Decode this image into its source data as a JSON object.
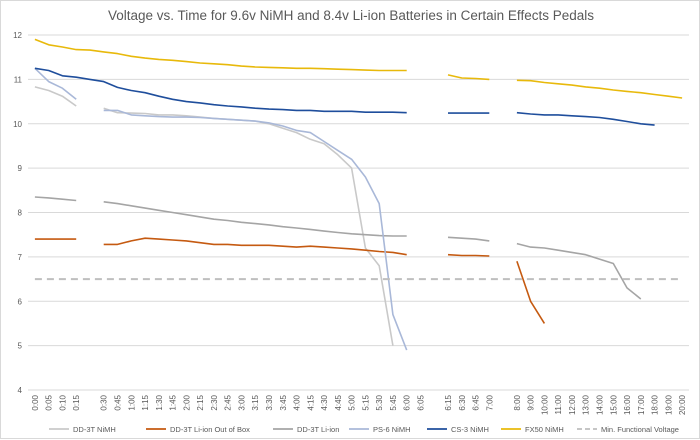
{
  "chart_data": {
    "type": "line",
    "title": "Voltage vs. Time for 9.6v NiMH and 8.4v Li-ion Batteries in Certain Effects Pedals",
    "xlabel": "",
    "ylabel": "",
    "ylim": [
      4,
      12
    ],
    "yticks": [
      4,
      5,
      6,
      7,
      8,
      9,
      10,
      11,
      12
    ],
    "grid": true,
    "legend_position": "bottom",
    "categories": [
      "0:00",
      "0:05",
      "0:10",
      "0:15",
      "",
      "0:30",
      "0:45",
      "1:00",
      "1:15",
      "1:30",
      "1:45",
      "2:00",
      "2:15",
      "2:30",
      "2:45",
      "3:00",
      "3:15",
      "3:30",
      "3:45",
      "4:00",
      "4:15",
      "4:30",
      "4:45",
      "5:00",
      "5:15",
      "5:30",
      "5:45",
      "6:00",
      "6:05",
      "",
      "6:15",
      "6:30",
      "6:45",
      "7:00",
      "",
      "8:00",
      "9:00",
      "10:00",
      "11:00",
      "12:00",
      "13:00",
      "14:00",
      "15:00",
      "16:00",
      "17:00",
      "18:00",
      "19:00",
      "20:00"
    ],
    "series": [
      {
        "name": "DD-3T NiMH",
        "color": "#c9c9c9",
        "values": [
          10.83,
          10.75,
          10.62,
          10.4,
          null,
          10.35,
          10.25,
          10.24,
          10.23,
          10.2,
          10.2,
          10.18,
          10.15,
          10.12,
          10.1,
          10.08,
          10.06,
          10.0,
          9.9,
          9.8,
          9.65,
          9.55,
          9.3,
          9.0,
          7.2,
          6.8,
          5.0,
          null,
          null,
          null,
          null,
          null,
          null,
          null,
          null,
          null,
          null,
          null,
          null,
          null,
          null,
          null,
          null,
          null,
          null,
          null,
          null,
          null
        ]
      },
      {
        "name": "DD-3T Li-ion Out of Box",
        "color": "#c55a11",
        "values": [
          7.4,
          7.4,
          7.4,
          7.4,
          null,
          7.28,
          7.28,
          7.36,
          7.42,
          7.4,
          7.38,
          7.36,
          7.32,
          7.28,
          7.28,
          7.26,
          7.26,
          7.26,
          7.24,
          7.22,
          7.24,
          7.22,
          7.2,
          7.18,
          7.15,
          7.12,
          7.1,
          7.05,
          null,
          null,
          7.05,
          7.03,
          7.03,
          7.02,
          null,
          6.9,
          6.0,
          5.5,
          null,
          null,
          null,
          null,
          null,
          null,
          null,
          null,
          null,
          null
        ]
      },
      {
        "name": "DD-3T Li-ion",
        "color": "#a5a5a5",
        "values": [
          8.35,
          8.33,
          8.3,
          8.27,
          null,
          8.24,
          8.2,
          8.15,
          8.1,
          8.05,
          8.0,
          7.95,
          7.9,
          7.85,
          7.82,
          7.78,
          7.75,
          7.72,
          7.68,
          7.65,
          7.62,
          7.58,
          7.55,
          7.52,
          7.5,
          7.48,
          7.47,
          7.47,
          null,
          null,
          7.44,
          7.42,
          7.4,
          7.36,
          null,
          7.3,
          7.22,
          7.2,
          7.15,
          7.1,
          7.05,
          6.95,
          6.85,
          6.3,
          6.05,
          null,
          null,
          null
        ]
      },
      {
        "name": "PS-6 NiMH",
        "color": "#a9b8d8",
        "values": [
          11.25,
          10.95,
          10.8,
          10.55,
          null,
          10.3,
          10.3,
          10.2,
          10.18,
          10.16,
          10.15,
          10.15,
          10.14,
          10.12,
          10.1,
          10.08,
          10.06,
          10.02,
          9.95,
          9.85,
          9.8,
          9.6,
          9.4,
          9.2,
          8.8,
          8.2,
          5.7,
          4.9,
          null,
          null,
          null,
          null,
          null,
          null,
          null,
          null,
          null,
          null,
          null,
          null,
          null,
          null,
          null,
          null,
          null,
          null,
          null,
          null
        ]
      },
      {
        "name": "CS-3 NiMH",
        "color": "#1f4e9c",
        "values": [
          11.25,
          11.2,
          11.08,
          11.05,
          11.0,
          10.95,
          10.82,
          10.75,
          10.7,
          10.62,
          10.55,
          10.5,
          10.47,
          10.43,
          10.4,
          10.38,
          10.35,
          10.33,
          10.32,
          10.3,
          10.3,
          10.28,
          10.28,
          10.28,
          10.26,
          10.26,
          10.26,
          10.25,
          null,
          null,
          10.24,
          10.24,
          10.24,
          10.24,
          null,
          10.25,
          10.22,
          10.2,
          10.2,
          10.18,
          10.16,
          10.14,
          10.1,
          10.05,
          10.0,
          9.97,
          null,
          null
        ]
      },
      {
        "name": "FX50 NiMH",
        "color": "#e8b90b",
        "values": [
          11.9,
          11.78,
          11.73,
          11.67,
          11.66,
          11.62,
          11.58,
          11.52,
          11.48,
          11.45,
          11.43,
          11.4,
          11.37,
          11.35,
          11.33,
          11.3,
          11.28,
          11.27,
          11.26,
          11.25,
          11.25,
          11.24,
          11.23,
          11.22,
          11.21,
          11.2,
          11.2,
          11.2,
          null,
          null,
          11.1,
          11.03,
          11.02,
          11.0,
          null,
          10.98,
          10.97,
          10.93,
          10.9,
          10.87,
          10.83,
          10.8,
          10.76,
          10.73,
          10.7,
          10.66,
          10.62,
          10.58
        ]
      },
      {
        "name": "Min. Functional Voltage",
        "color": "#bfbfbf",
        "dashed": true,
        "values": [
          6.5,
          6.5,
          6.5,
          6.5,
          6.5,
          6.5,
          6.5,
          6.5,
          6.5,
          6.5,
          6.5,
          6.5,
          6.5,
          6.5,
          6.5,
          6.5,
          6.5,
          6.5,
          6.5,
          6.5,
          6.5,
          6.5,
          6.5,
          6.5,
          6.5,
          6.5,
          6.5,
          6.5,
          6.5,
          6.5,
          6.5,
          6.5,
          6.5,
          6.5,
          6.5,
          6.5,
          6.5,
          6.5,
          6.5,
          6.5,
          6.5,
          6.5,
          6.5,
          6.5,
          6.5,
          6.5,
          6.5,
          6.5
        ]
      }
    ]
  }
}
